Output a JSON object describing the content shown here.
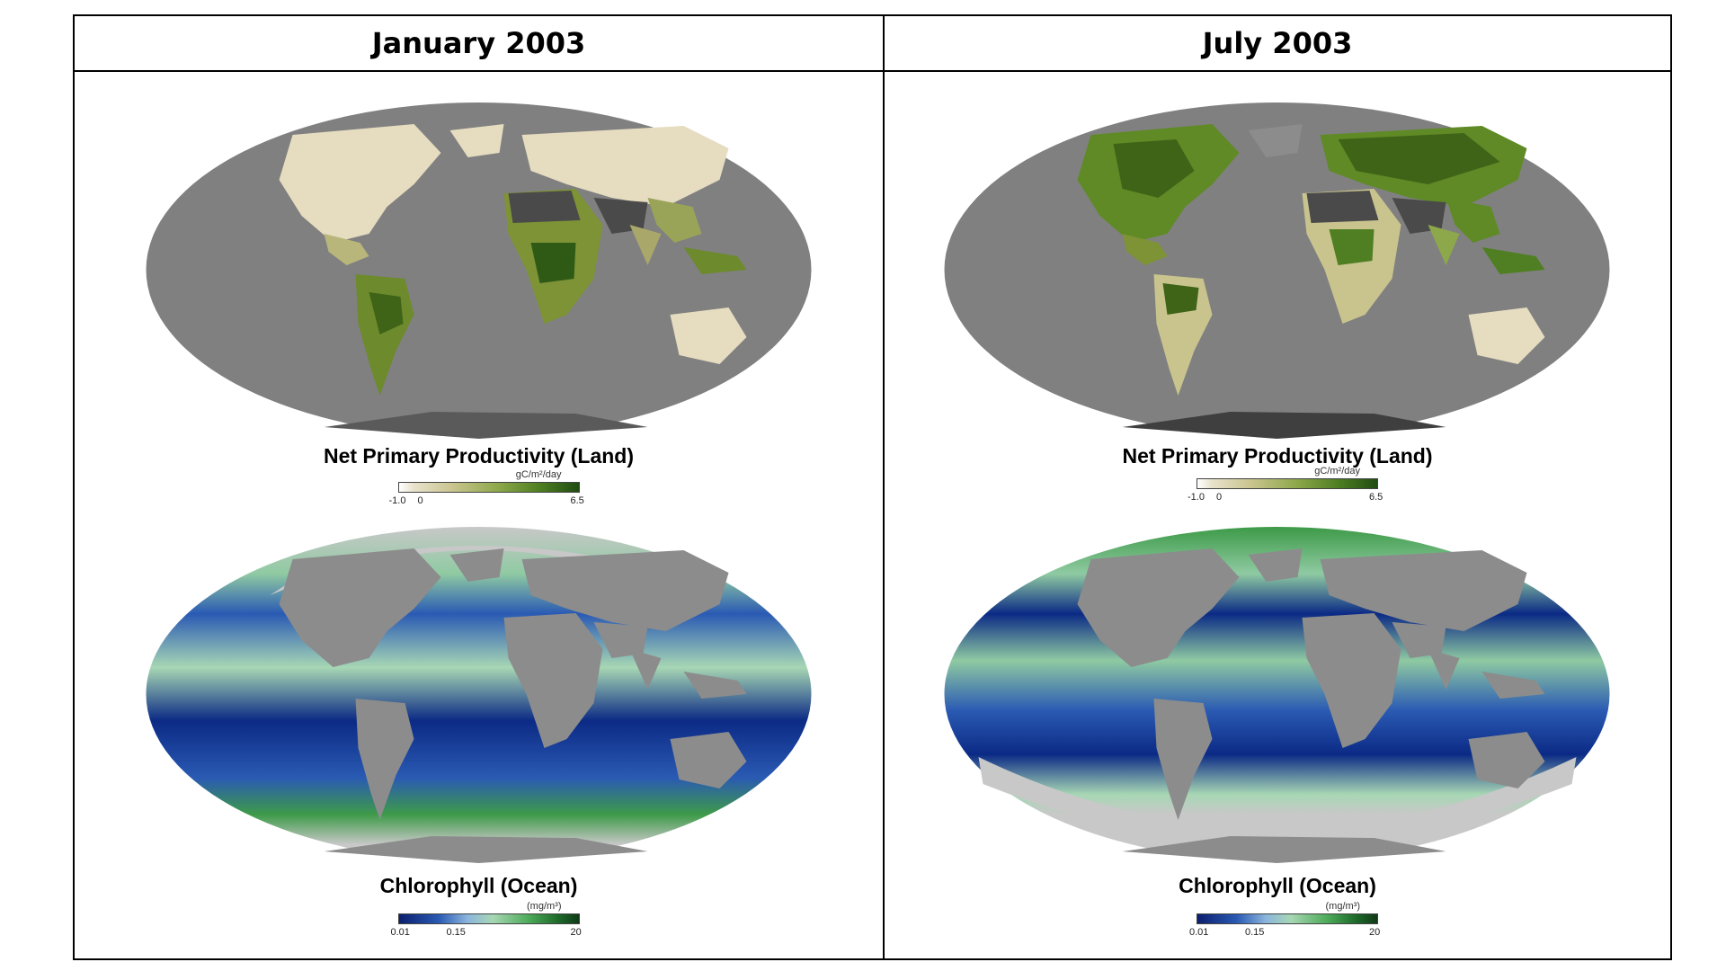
{
  "columns": [
    {
      "title": "January 2003",
      "land": {
        "caption": "Net Primary Productivity (Land)",
        "unit": "gC/m²/day",
        "ticks": [
          "-1.0",
          "0",
          "6.5"
        ]
      },
      "ocean": {
        "caption": "Chlorophyll (Ocean)",
        "unit": "(mg/m³)",
        "ticks": [
          "0.01",
          "0.15",
          "20"
        ]
      }
    },
    {
      "title": "July 2003",
      "land": {
        "caption": "Net Primary Productivity (Land)",
        "unit": "gC/m²/day",
        "ticks": [
          "-1.0",
          "0",
          "6.5"
        ]
      },
      "ocean": {
        "caption": "Chlorophyll (Ocean)",
        "unit": "(mg/m³)",
        "ticks": [
          "0.01",
          "0.15",
          "20"
        ]
      }
    }
  ],
  "colors": {
    "ocean_gray": "#808080",
    "land_gray": "#8c8c8c",
    "ice_gray": "#c8c8c8",
    "desert_dark": "#4a4a4a",
    "low_npp": "#e6dcc0",
    "high_npp": "#2f5a16",
    "chl_low": "#0b2a85",
    "chl_high": "#2b7a2e"
  }
}
